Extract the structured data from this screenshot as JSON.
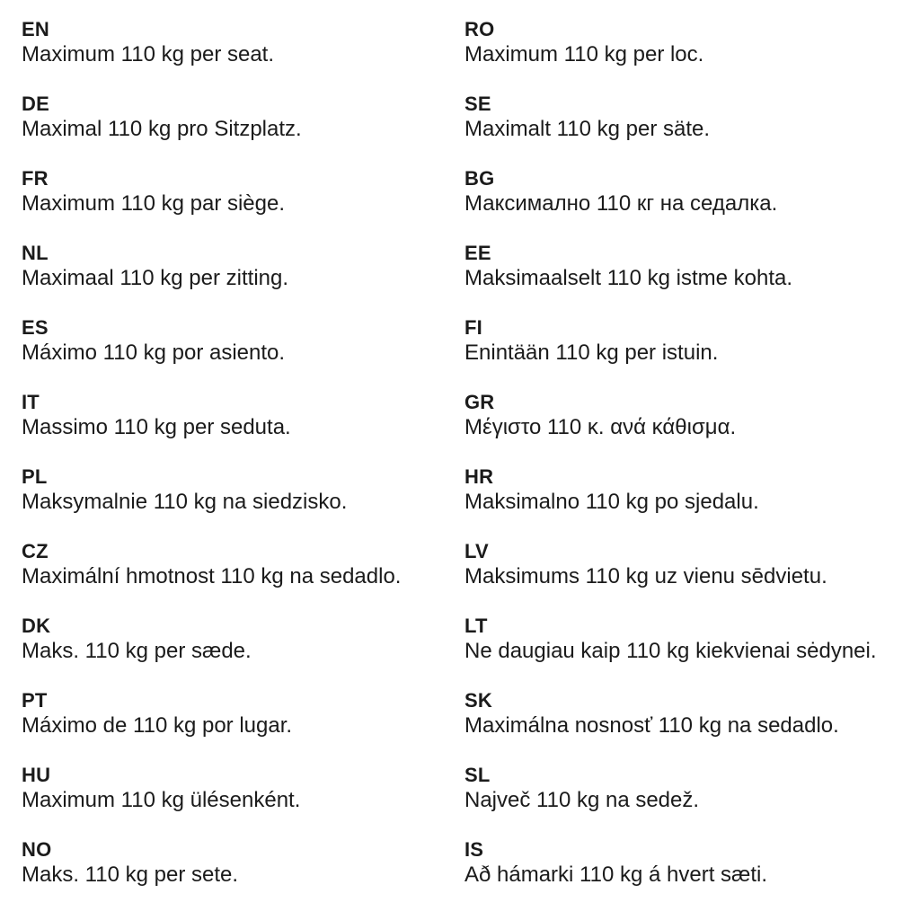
{
  "columns": {
    "left": [
      {
        "code": "EN",
        "text": "Maximum 110 kg per seat."
      },
      {
        "code": "DE",
        "text": "Maximal 110 kg pro Sitzplatz."
      },
      {
        "code": "FR",
        "text": "Maximum 110 kg par siège."
      },
      {
        "code": "NL",
        "text": "Maximaal 110 kg per zitting."
      },
      {
        "code": "ES",
        "text": "Máximo 110 kg por asiento."
      },
      {
        "code": "IT",
        "text": "Massimo 110 kg per seduta."
      },
      {
        "code": "PL",
        "text": "Maksymalnie 110 kg na siedzisko."
      },
      {
        "code": "CZ",
        "text": "Maximální hmotnost 110 kg na sedadlo."
      },
      {
        "code": "DK",
        "text": "Maks. 110 kg per sæde."
      },
      {
        "code": "PT",
        "text": "Máximo de 110 kg por lugar."
      },
      {
        "code": "HU",
        "text": "Maximum 110 kg ülésenként."
      },
      {
        "code": "NO",
        "text": "Maks. 110 kg per sete."
      }
    ],
    "right": [
      {
        "code": "RO",
        "text": "Maximum 110 kg per loc."
      },
      {
        "code": "SE",
        "text": "Maximalt 110 kg per säte."
      },
      {
        "code": "BG",
        "text": "Максимално 110 кг на седалка."
      },
      {
        "code": "EE",
        "text": "Maksimaalselt 110 kg istme kohta."
      },
      {
        "code": "FI",
        "text": "Enintään 110 kg per istuin."
      },
      {
        "code": "GR",
        "text": "Μέγιστο 110 κ. ανά κάθισμα."
      },
      {
        "code": "HR",
        "text": "Maksimalno 110 kg po sjedalu."
      },
      {
        "code": "LV",
        "text": "Maksimums 110 kg uz vienu sēdvietu."
      },
      {
        "code": "LT",
        "text": "Ne daugiau kaip 110 kg kiekvienai sėdynei."
      },
      {
        "code": "SK",
        "text": "Maximálna nosnosť 110 kg na sedadlo."
      },
      {
        "code": "SL",
        "text": "Največ 110 kg na sedež."
      },
      {
        "code": "IS",
        "text": "Að hámarki 110 kg á hvert sæti."
      }
    ]
  }
}
